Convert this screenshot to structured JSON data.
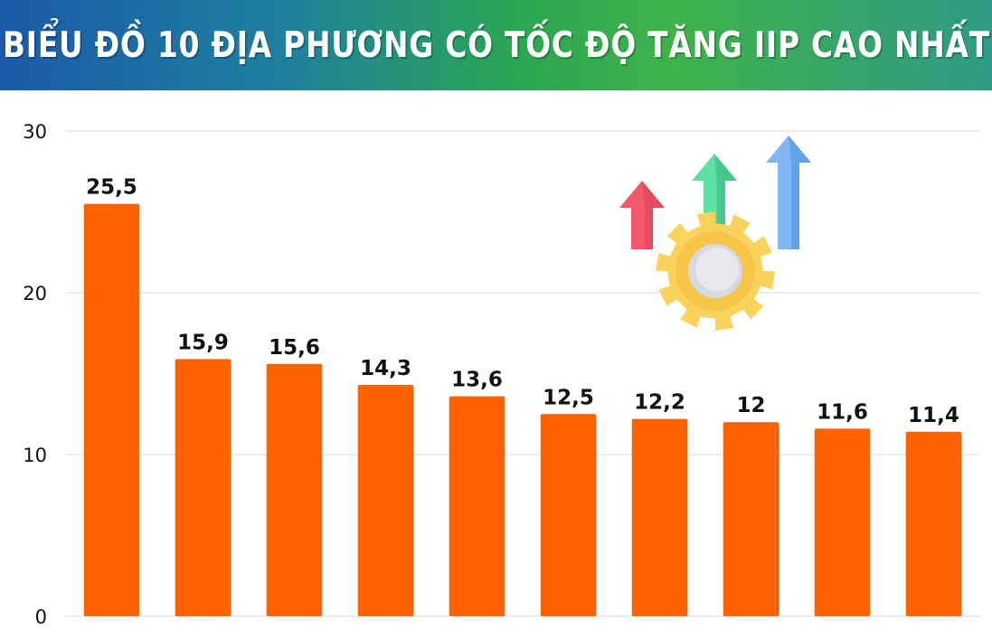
{
  "title": "BIỂU ĐỒ 10 ĐỊA PHƯƠNG CÓ TỐC ĐỘ TĂNG IIP CAO NHẤT",
  "colors": {
    "bar": "#ff6300",
    "grid": "#d9d9d9",
    "banner_start": "#1a5aa8",
    "banner_mid": "#3fb24a",
    "banner_end": "#2f9a86"
  },
  "decoration": {
    "icons": [
      "red-arrow-up-icon",
      "green-arrow-up-icon",
      "blue-arrow-up-icon",
      "gear-icon"
    ]
  },
  "chart_data": {
    "type": "bar",
    "values": [
      25.5,
      15.9,
      15.6,
      14.3,
      13.6,
      12.5,
      12.2,
      12,
      11.6,
      11.4
    ],
    "value_labels": [
      "25,5",
      "15,9",
      "15,6",
      "14,3",
      "13,6",
      "12,5",
      "12,2",
      "12",
      "11,6",
      "11,4"
    ],
    "ylim": [
      0,
      30
    ],
    "yticks": [
      0,
      10,
      20,
      30
    ],
    "ytick_labels": [
      "0",
      "10",
      "20",
      "30"
    ],
    "grid": true,
    "legend": "none"
  }
}
